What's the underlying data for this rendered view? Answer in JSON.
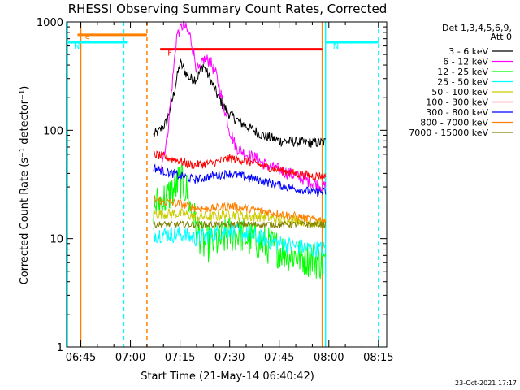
{
  "chart_data": {
    "type": "line",
    "title": "RHESSI Observing Summary Count Rates, Corrected",
    "xlabel": "Start Time (21-May-14 06:40:42)",
    "ylabel": "Corrected Count Rate (s⁻¹ detector⁻¹)",
    "yscale": "log",
    "ylim": [
      1,
      1000
    ],
    "xlim": [
      "06:40:42",
      "08:17:30"
    ],
    "x_ticks": [
      "06:45",
      "07:00",
      "07:15",
      "07:30",
      "07:45",
      "08:00",
      "08:15"
    ],
    "y_tick_labels": [
      "1",
      "10",
      "100",
      "1000"
    ],
    "legend": {
      "placement": "top-right",
      "header_lines": [
        "Det 1,3,4,5,6,9,",
        "Att 0"
      ],
      "entries": [
        {
          "name": "3 - 6 keV",
          "color": "#000000"
        },
        {
          "name": "6 - 12 keV",
          "color": "#ff00ff"
        },
        {
          "name": "12 - 25 keV",
          "color": "#00ff00"
        },
        {
          "name": "25 - 50 keV",
          "color": "#00ffff"
        },
        {
          "name": "50 - 100 keV",
          "color": "#cccc00"
        },
        {
          "name": "100 - 300 keV",
          "color": "#ff0000"
        },
        {
          "name": "300 - 800 keV",
          "color": "#0000ff"
        },
        {
          "name": "800 - 7000 keV",
          "color": "#ff8000"
        },
        {
          "name": "7000 - 15000 keV",
          "color": "#808000"
        }
      ]
    },
    "flags": [
      {
        "label": "S",
        "color": "#ff8000",
        "start": "06:44",
        "end": "07:05",
        "level": 760
      },
      {
        "label": "N",
        "color": "#00ffff",
        "start": "06:40",
        "end": "06:59",
        "level": 650
      },
      {
        "label": "N",
        "color": "#00ffff",
        "start": "07:59",
        "end": "08:15",
        "level": 650
      },
      {
        "label": "F",
        "color": "#ff0000",
        "start": "07:09",
        "end": "07:58",
        "level": 560
      }
    ],
    "vlines": [
      {
        "time": "06:41",
        "color": "#00ffff",
        "style": "solid"
      },
      {
        "time": "06:58",
        "color": "#00ffff",
        "style": "dashed"
      },
      {
        "time": "06:45",
        "color": "#ff8000",
        "style": "solid"
      },
      {
        "time": "07:05",
        "color": "#ff8000",
        "style": "dashed"
      },
      {
        "time": "07:58",
        "color": "#ff8000",
        "style": "solid"
      },
      {
        "time": "07:59",
        "color": "#00ffff",
        "style": "solid"
      },
      {
        "time": "08:15",
        "color": "#00ffff",
        "style": "dashed"
      }
    ],
    "series": [
      {
        "name": "3 - 6 keV",
        "color": "#000000",
        "noise": 0.05,
        "x": [
          "07:07",
          "07:09",
          "07:11",
          "07:13",
          "07:15",
          "07:17",
          "07:18",
          "07:20",
          "07:22",
          "07:24",
          "07:26",
          "07:28",
          "07:30",
          "07:33",
          "07:36",
          "07:40",
          "07:45",
          "07:50",
          "07:55",
          "07:58",
          "07:59"
        ],
        "y": [
          90,
          100,
          120,
          210,
          420,
          330,
          300,
          300,
          400,
          300,
          220,
          170,
          140,
          120,
          105,
          90,
          80,
          78,
          77,
          77,
          78
        ]
      },
      {
        "name": "6 - 12 keV",
        "color": "#ff00ff",
        "noise": 0.06,
        "x": [
          "07:09",
          "07:11",
          "07:13",
          "07:14",
          "07:16",
          "07:18",
          "07:20",
          "07:21",
          "07:22",
          "07:24",
          "07:26",
          "07:28",
          "07:30",
          "07:32",
          "07:35",
          "07:38",
          "07:40",
          "07:43",
          "07:46",
          "07:50",
          "07:55",
          "07:59"
        ],
        "y": [
          45,
          80,
          350,
          750,
          950,
          750,
          380,
          350,
          450,
          440,
          320,
          180,
          100,
          70,
          60,
          55,
          50,
          45,
          42,
          38,
          33,
          30
        ]
      },
      {
        "name": "12 - 25 keV",
        "color": "#00ff00",
        "noise": 0.18,
        "x": [
          "07:07",
          "07:09",
          "07:11",
          "07:13",
          "07:15",
          "07:17",
          "07:18",
          "07:20",
          "07:22",
          "07:25",
          "07:28",
          "07:30",
          "07:33",
          "07:36",
          "07:40",
          "07:45",
          "07:50",
          "07:55",
          "07:59"
        ],
        "y": [
          20,
          22,
          24,
          28,
          35,
          28,
          20,
          13,
          9,
          9,
          10,
          11,
          11,
          10,
          9,
          8,
          7,
          6.5,
          6
        ]
      },
      {
        "name": "25 - 50 keV",
        "color": "#00ffff",
        "noise": 0.08,
        "x": [
          "07:07",
          "07:10",
          "07:15",
          "07:20",
          "07:25",
          "07:30",
          "07:35",
          "07:40",
          "07:45",
          "07:50",
          "07:55",
          "07:59"
        ],
        "y": [
          11,
          11,
          11,
          10,
          11,
          12,
          11,
          10,
          9,
          8.5,
          8,
          8
        ]
      },
      {
        "name": "50 - 100 keV",
        "color": "#cccc00",
        "noise": 0.05,
        "x": [
          "07:07",
          "07:10",
          "07:15",
          "07:20",
          "07:25",
          "07:30",
          "07:35",
          "07:40",
          "07:45",
          "07:50",
          "07:55",
          "07:59"
        ],
        "y": [
          17,
          17,
          17,
          16,
          16,
          17,
          16,
          16,
          15,
          15,
          14,
          14
        ]
      },
      {
        "name": "100 - 300 keV",
        "color": "#ff0000",
        "noise": 0.04,
        "x": [
          "07:07",
          "07:10",
          "07:15",
          "07:18",
          "07:20",
          "07:25",
          "07:30",
          "07:35",
          "07:40",
          "07:45",
          "07:50",
          "07:55",
          "07:59"
        ],
        "y": [
          60,
          57,
          52,
          48,
          48,
          50,
          55,
          52,
          47,
          43,
          40,
          38,
          38
        ]
      },
      {
        "name": "300 - 800 keV",
        "color": "#0000ff",
        "noise": 0.04,
        "x": [
          "07:07",
          "07:10",
          "07:15",
          "07:20",
          "07:25",
          "07:30",
          "07:35",
          "07:40",
          "07:45",
          "07:50",
          "07:55",
          "07:59"
        ],
        "y": [
          45,
          42,
          38,
          35,
          38,
          40,
          37,
          34,
          31,
          29,
          27,
          27
        ]
      },
      {
        "name": "800 - 7000 keV",
        "color": "#ff8000",
        "noise": 0.04,
        "x": [
          "07:07",
          "07:10",
          "07:15",
          "07:20",
          "07:25",
          "07:30",
          "07:35",
          "07:40",
          "07:45",
          "07:50",
          "07:55",
          "07:59"
        ],
        "y": [
          23,
          22,
          21,
          19,
          19,
          20,
          19,
          18,
          17,
          16,
          15,
          15
        ]
      },
      {
        "name": "7000 - 15000 keV",
        "color": "#808000",
        "noise": 0.03,
        "x": [
          "07:07",
          "07:59"
        ],
        "y": [
          13.5,
          13.5
        ]
      }
    ]
  },
  "footer": {
    "timestamp": "23-Oct-2021 17:17"
  }
}
